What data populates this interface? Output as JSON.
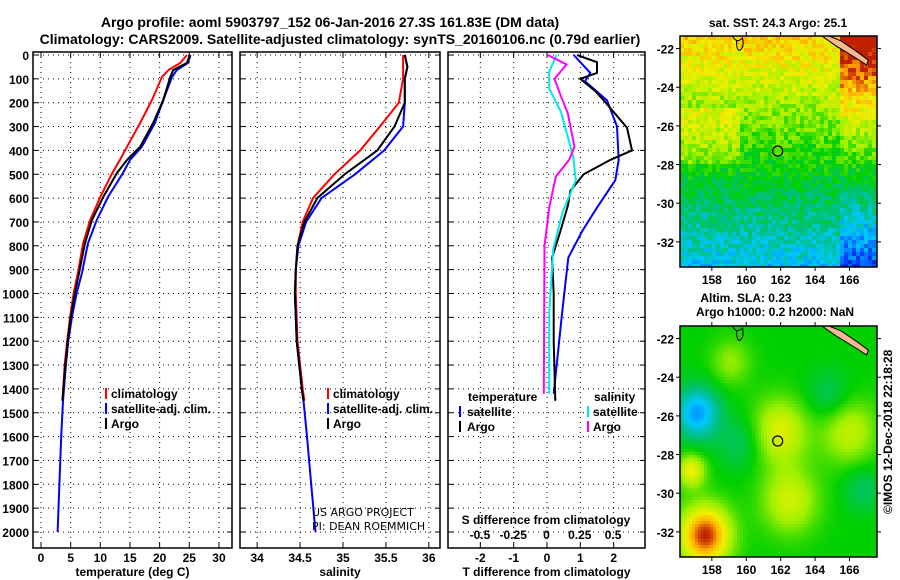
{
  "title": {
    "line1": "Argo profile: aoml 5903797_152 06-Jan-2016 27.3S 161.83E (DM data)",
    "line2": "Climatology: CARS2009. Satellite-adjusted climatology: synTS_20160106.nc (0.79d earlier)"
  },
  "depth_ticks": [
    0,
    100,
    200,
    300,
    400,
    500,
    600,
    700,
    800,
    900,
    1000,
    1100,
    1200,
    1300,
    1400,
    1500,
    1600,
    1700,
    1800,
    1900,
    2000
  ],
  "chart_data": [
    {
      "type": "line",
      "id": "temperature",
      "xlabel": "temperature (deg C)",
      "ylabel": "depth",
      "xticks": [
        0,
        5,
        10,
        15,
        20,
        25,
        30
      ],
      "xlim": [
        -1.35,
        32.2
      ],
      "ylim": [
        2067,
        -13
      ],
      "grid": true,
      "legend": [
        {
          "label": "climatology",
          "color": "#ff0000"
        },
        {
          "label": "satellite-adj. clim.",
          "color": "#0000ff"
        },
        {
          "label": "Argo",
          "color": "#000000"
        }
      ],
      "series": [
        {
          "name": "climatology",
          "color": "#ff0000",
          "depth": [
            0,
            33,
            63,
            92,
            189,
            285,
            385,
            440,
            495,
            595,
            692,
            790,
            915,
            1000,
            1100,
            1200,
            1300,
            1450
          ],
          "values": [
            24.6,
            23.5,
            21.5,
            20.4,
            18.7,
            16.7,
            14.5,
            13.3,
            12.0,
            10.0,
            8.3,
            7.1,
            6.2,
            5.5,
            4.9,
            4.4,
            4.0,
            3.6
          ]
        },
        {
          "name": "satellite-adj. clim.",
          "color": "#0000ff",
          "depth": [
            0,
            33,
            63,
            92,
            189,
            285,
            385,
            440,
            495,
            595,
            692,
            790,
            915,
            1000,
            1100,
            1200,
            1300,
            1450,
            1600,
            1800,
            2000
          ],
          "values": [
            25.2,
            24.8,
            22.9,
            22.1,
            20.6,
            19.2,
            17.0,
            15.0,
            13.8,
            11.3,
            9.4,
            7.9,
            6.9,
            6.0,
            5.2,
            4.6,
            4.2,
            3.7,
            3.4,
            3.1,
            2.8
          ]
        },
        {
          "name": "Argo",
          "color": "#000000",
          "depth": [
            0,
            33,
            63,
            92,
            189,
            285,
            385,
            440,
            495,
            595,
            692,
            790,
            915,
            1000,
            1100,
            1200,
            1300,
            1450
          ],
          "values": [
            25.1,
            24.6,
            22.3,
            21.8,
            20.6,
            18.9,
            16.7,
            14.5,
            12.8,
            10.5,
            8.6,
            7.4,
            6.4,
            5.7,
            5.0,
            4.5,
            4.1,
            3.6
          ]
        }
      ]
    },
    {
      "type": "line",
      "id": "salinity",
      "xlabel": "salinity",
      "ylabel": "depth",
      "xticks": [
        34,
        34.5,
        35,
        35.5,
        36
      ],
      "xlim": [
        33.8,
        36.13
      ],
      "ylim": [
        2067,
        -13
      ],
      "grid": true,
      "legend": [
        {
          "label": "climatology",
          "color": "#ff0000"
        },
        {
          "label": "satellite-adj. clim.",
          "color": "#0000ff"
        },
        {
          "label": "Argo",
          "color": "#000000"
        }
      ],
      "series": [
        {
          "name": "climatology",
          "color": "#ff0000",
          "depth": [
            0,
            50,
            100,
            200,
            300,
            400,
            500,
            600,
            700,
            800,
            900,
            1000,
            1200,
            1400,
            1450
          ],
          "values": [
            35.7,
            35.7,
            35.7,
            35.65,
            35.43,
            35.2,
            34.9,
            34.65,
            34.53,
            34.47,
            34.45,
            34.45,
            34.47,
            34.53,
            34.55
          ]
        },
        {
          "name": "satellite-adj. clim.",
          "color": "#0000ff",
          "depth": [
            0,
            50,
            100,
            200,
            300,
            400,
            500,
            600,
            700,
            800,
            900,
            1000,
            1200,
            1400,
            1450,
            1600,
            1800,
            2000
          ],
          "values": [
            35.72,
            35.75,
            35.72,
            35.72,
            35.7,
            35.48,
            35.14,
            34.75,
            34.57,
            34.48,
            34.45,
            34.44,
            34.46,
            34.52,
            34.54,
            34.58,
            34.63,
            34.68
          ]
        },
        {
          "name": "Argo",
          "color": "#000000",
          "depth": [
            0,
            50,
            100,
            200,
            300,
            400,
            500,
            600,
            700,
            800,
            900,
            1000,
            1200,
            1400,
            1450
          ],
          "values": [
            35.72,
            35.75,
            35.72,
            35.72,
            35.6,
            35.4,
            35.02,
            34.7,
            34.55,
            34.47,
            34.45,
            34.44,
            34.46,
            34.52,
            34.54
          ]
        }
      ]
    },
    {
      "type": "line",
      "id": "difference",
      "xlabel": "T difference from climatology",
      "x2label": "S difference from climatology",
      "xticks": [
        -2,
        -1,
        0,
        1,
        2
      ],
      "x2ticks": [
        "-0.5",
        "-0.25",
        "0",
        "0.25",
        "0.5"
      ],
      "x2tick_values": [
        -0.5,
        -0.25,
        0,
        0.25,
        0.5
      ],
      "xlim": [
        -2.97,
        2.94
      ],
      "x2lim": [
        -0.74,
        0.74
      ],
      "ylim": [
        2067,
        -13
      ],
      "grid": true,
      "legend_t": {
        "title": "temperature",
        "items": [
          {
            "label": "satellite",
            "color": "#0000ff"
          },
          {
            "label": "Argo",
            "color": "#000000"
          }
        ]
      },
      "legend_s": {
        "title": "salinity",
        "items": [
          {
            "label": "satellite",
            "color": "#00e8e8"
          },
          {
            "label": "Argo",
            "color": "#ff00ff"
          }
        ]
      },
      "series": [
        {
          "name": "T satellite",
          "axis": "T",
          "color": "#0000ff",
          "depth": [
            0,
            75,
            110,
            190,
            300,
            440,
            525,
            640,
            740,
            850,
            1085,
            1420
          ],
          "values": [
            0.8,
            1.3,
            1.14,
            1.8,
            2.1,
            2.15,
            2.05,
            1.5,
            1.05,
            0.64,
            0.45,
            0.2
          ]
        },
        {
          "name": "T Argo",
          "axis": "T",
          "color": "#000000",
          "depth": [
            0,
            30,
            75,
            100,
            150,
            190,
            305,
            400,
            440,
            500,
            570,
            630,
            740,
            850,
            1000,
            1200,
            1450
          ],
          "values": [
            0.9,
            1.5,
            1.5,
            1.0,
            1.44,
            1.7,
            2.4,
            2.55,
            1.9,
            1.1,
            0.7,
            0.63,
            0.4,
            0.15,
            0.2,
            0.2,
            0.25
          ]
        },
        {
          "name": "S satellite",
          "axis": "S",
          "color": "#00e8e8",
          "depth": [
            0,
            70,
            140,
            240,
            425,
            525,
            660,
            815,
            1085,
            1420
          ],
          "values": [
            0.075,
            0.02,
            0.02,
            0.11,
            0.2,
            0.22,
            0.12,
            0.05,
            0.02,
            0.02
          ]
        },
        {
          "name": "S Argo",
          "axis": "S",
          "color": "#ff00ff",
          "depth": [
            0,
            40,
            100,
            160,
            245,
            385,
            440,
            510,
            640,
            800,
            1420
          ],
          "values": [
            0.01,
            0.15,
            0.06,
            0.1,
            0.16,
            0.21,
            0.17,
            0.07,
            0.02,
            -0.015,
            -0.02
          ]
        }
      ]
    }
  ],
  "maps": [
    {
      "title": "sat. SST: 24.3 Argo: 25.1",
      "lon_ticks": [
        158,
        160,
        162,
        164,
        166
      ],
      "lat_ticks": [
        -22,
        -24,
        -26,
        -28,
        -30,
        -32
      ],
      "lon_range": [
        156.15,
        167.6
      ],
      "lat_range": [
        -21.35,
        -33.3
      ],
      "argo_lon": 161.83,
      "argo_lat": -27.3
    },
    {
      "title1": "Altim. SLA: 0.23",
      "title2": "Argo h1000: 0.2 h2000: NaN",
      "lon_ticks": [
        158,
        160,
        162,
        164,
        166
      ],
      "lat_ticks": [
        -22,
        -24,
        -26,
        -28,
        -30,
        -32
      ],
      "lon_range": [
        156.15,
        167.6
      ],
      "lat_range": [
        -21.35,
        -33.3
      ],
      "argo_lon": 161.83,
      "argo_lat": -27.3
    }
  ],
  "credit": {
    "line1": "US ARGO PROJECT",
    "line2": "PI: DEAN ROEMMICH"
  },
  "timestamp": "©IMOS 12-Dec-2018 22:18:28",
  "colors": {
    "land": "#f8b890"
  }
}
